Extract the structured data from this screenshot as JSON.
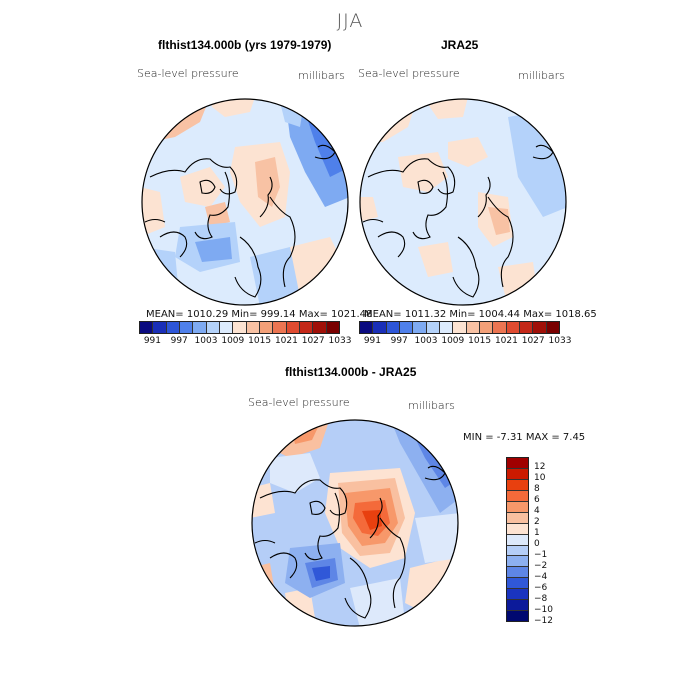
{
  "season": "JJA",
  "panels": [
    {
      "title": "flthist134.000b (yrs 1979-1979)",
      "variable": "Sea-level pressure",
      "units": "millibars",
      "stats": "MEAN= 1010.29   Min= 999.14   Max= 1021.48"
    },
    {
      "title": "JRA25",
      "variable": "Sea-level pressure",
      "units": "millibars",
      "stats": "MEAN= 1011.32   Min= 1004.44   Max= 1018.65"
    }
  ],
  "abs_colorbar": {
    "colors": [
      "#0a0a80",
      "#1a2fb8",
      "#2e56d8",
      "#4f80ea",
      "#7eaaf2",
      "#b4d2fa",
      "#dcebfd",
      "#fce3d2",
      "#f8c2a4",
      "#f3a078",
      "#ec7552",
      "#df4b30",
      "#c42818",
      "#a01008",
      "#7a0000"
    ],
    "tick_labels": [
      "991",
      "997",
      "1003",
      "1009",
      "1015",
      "1021",
      "1027",
      "1033"
    ]
  },
  "diff": {
    "title": "flthist134.000b - JRA25",
    "variable": "Sea-level pressure",
    "units": "millibars",
    "stats": "MIN =   -7.31  MAX =    7.45",
    "colors": [
      "#a00000",
      "#cc1a00",
      "#e8400f",
      "#f46a3a",
      "#f7986a",
      "#f9c0a0",
      "#fde3d2",
      "#dde9fb",
      "#b5cef7",
      "#8db0f0",
      "#5e86e6",
      "#3058d8",
      "#1a34c0",
      "#0c1a9a",
      "#000870"
    ],
    "labels": [
      "12",
      "10",
      "8",
      "6",
      "4",
      "2",
      "1",
      "0",
      "−1",
      "−2",
      "−4",
      "−6",
      "−8",
      "−10",
      "−12"
    ]
  }
}
